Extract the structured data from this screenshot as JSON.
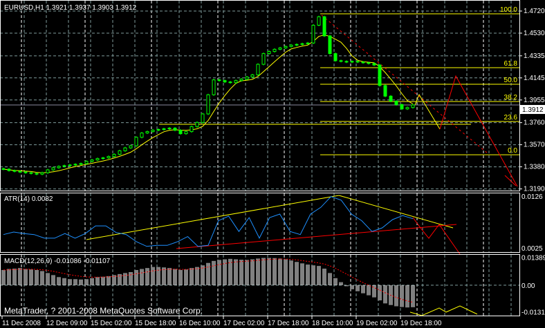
{
  "header": {
    "symbol_line": "EURUSD,H1  1.3921 1.3937 1.3903 1.3912"
  },
  "copyright": "MetaTrader, ? 2001-2008 MetaQuotes Software Corp.",
  "colors": {
    "background": "#000000",
    "candle": "#00ff00",
    "ma": "#ffff00",
    "fib": "#ffff00",
    "projection": "#ff0000",
    "atr": "#1e90ff",
    "macd_hist": "#ffffff",
    "signal": "#ff0000",
    "grid": "#8fa5a5"
  },
  "chart_data": [
    {
      "type": "candlestick",
      "title": "EURUSD,H1",
      "ohlc_last": {
        "open": 1.3921,
        "high": 1.3937,
        "low": 1.3903,
        "close": 1.3912
      },
      "current_price": "1.3912",
      "price_ticks": [
        "1.4720",
        "1.4530",
        "1.4335",
        "1.4145",
        "1.3955",
        "1.3760",
        "1.3570",
        "1.3380",
        "1.3190"
      ],
      "ylim": [
        1.319,
        1.472
      ],
      "grid": true,
      "closes": [
        1.336,
        1.3348,
        1.3341,
        1.3335,
        1.3329,
        1.3323,
        1.3317,
        1.3329,
        1.3354,
        1.3372,
        1.3384,
        1.339,
        1.3396,
        1.3402,
        1.3408,
        1.3427,
        1.3439,
        1.3451,
        1.3457,
        1.3469,
        1.3488,
        1.3518,
        1.3543,
        1.3561,
        1.3634,
        1.3671,
        1.3683,
        1.3695,
        1.3701,
        1.3707,
        1.3713,
        1.3695,
        1.3665,
        1.3683,
        1.3726,
        1.3762,
        1.3835,
        1.4,
        1.4128,
        1.4122,
        1.411,
        1.4104,
        1.4122,
        1.4134,
        1.4153,
        1.4171,
        1.4262,
        1.4354,
        1.4372,
        1.4391,
        1.4403,
        1.4415,
        1.4427,
        1.4433,
        1.4439,
        1.4445,
        1.4598,
        1.4671,
        1.4506,
        1.4354,
        1.4293,
        1.4287,
        1.4281,
        1.4287,
        1.4281,
        1.4275,
        1.4269,
        1.4256,
        1.4079,
        1.3988,
        1.3945,
        1.3915,
        1.3878,
        1.389,
        1.3912
      ],
      "fibonacci": [
        {
          "label": "100.0",
          "price": 1.4696
        },
        {
          "label": "61.8",
          "price": 1.4233
        },
        {
          "label": "50.0",
          "price": 1.409
        },
        {
          "label": "38.2",
          "price": 1.3942
        },
        {
          "label": "23.6",
          "price": 1.377
        },
        {
          "label": "0.0",
          "price": 1.3484
        }
      ]
    },
    {
      "type": "line",
      "title": "ATR(14) 0.0082",
      "ticks": [
        "0.0126",
        "0.0025"
      ],
      "ylim": [
        0.0025,
        0.0126
      ],
      "values": [
        0.0051,
        0.0056,
        0.0053,
        0.0051,
        0.0044,
        0.0044,
        0.0053,
        0.0044,
        0.0053,
        0.0068,
        0.0068,
        0.0055,
        0.0051,
        0.0037,
        0.0028,
        0.003,
        0.003,
        0.0037,
        0.0047,
        0.0028,
        0.003,
        0.0078,
        0.0087,
        0.0057,
        0.0084,
        0.0044,
        0.0084,
        0.0091,
        0.0057,
        0.0051,
        0.0091,
        0.0104,
        0.0125,
        0.0118,
        0.0091,
        0.0078,
        0.0057,
        0.0064,
        0.008,
        0.0088,
        0.0082
      ]
    },
    {
      "type": "bar",
      "title": "MACD(12,26,9) -0.01086 -0.01107",
      "ticks": [
        "0.01389",
        "0.00",
        "-0.01314"
      ],
      "ylim": [
        -0.01314,
        0.01389
      ],
      "values": [
        0.0075,
        0.008,
        0.0082,
        0.0085,
        0.008,
        0.0078,
        0.0075,
        0.007,
        0.006,
        0.005,
        0.004,
        0.0035,
        0.003,
        0.003,
        0.0028,
        0.003,
        0.0035,
        0.004,
        0.0042,
        0.0045,
        0.005,
        0.0055,
        0.006,
        0.0065,
        0.0075,
        0.008,
        0.0085,
        0.009,
        0.009,
        0.0088,
        0.0085,
        0.008,
        0.0075,
        0.0078,
        0.0085,
        0.009,
        0.0098,
        0.011,
        0.012,
        0.0125,
        0.0128,
        0.013,
        0.0128,
        0.0126,
        0.0125,
        0.0128,
        0.0132,
        0.0135,
        0.0135,
        0.0134,
        0.0132,
        0.0128,
        0.0122,
        0.0115,
        0.0108,
        0.0102,
        0.0098,
        0.0095,
        0.0082,
        0.006,
        0.0035,
        0.0015,
        -0.0005,
        -0.002,
        -0.003,
        -0.004,
        -0.005,
        -0.006,
        -0.0075,
        -0.009,
        -0.0098,
        -0.0104,
        -0.0108,
        -0.011,
        -0.01086
      ]
    }
  ],
  "time_axis": [
    "11 Dec 2008",
    "12 Dec 09:00",
    "15 Dec 02:00",
    "15 Dec 18:00",
    "16 Dec 10:00",
    "17 Dec 02:00",
    "17 Dec 18:00",
    "18 Dec 10:00",
    "19 Dec 02:00",
    "19 Dec 18:00"
  ]
}
